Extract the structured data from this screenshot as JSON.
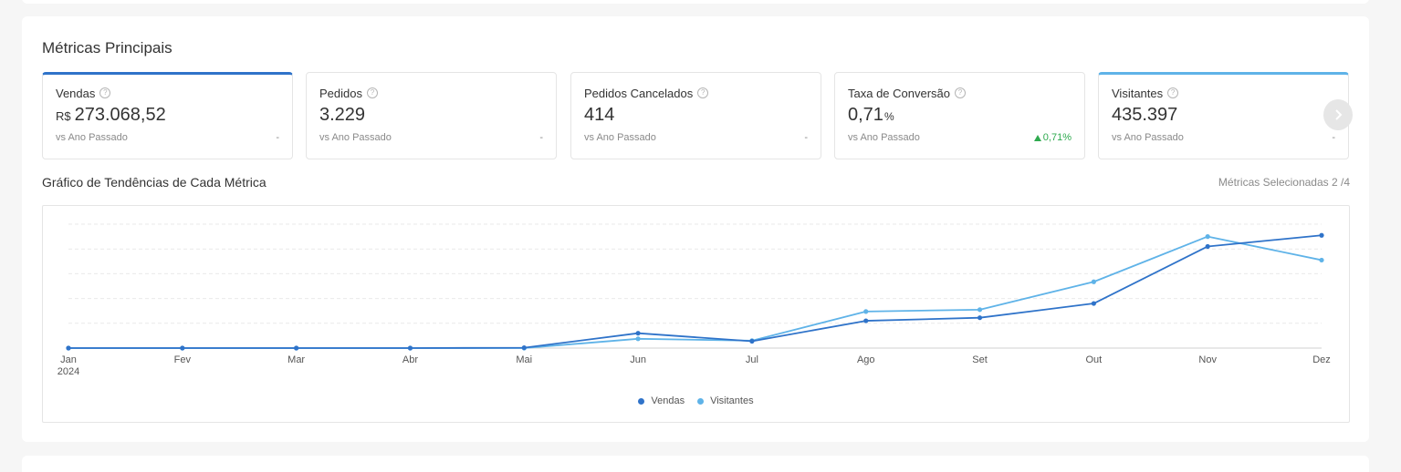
{
  "section_title": "Métricas Principais",
  "metrics": [
    {
      "name": "Vendas",
      "currency": "R$",
      "value": "273.068,52",
      "compare_label": "vs Ano Passado",
      "delta": "-"
    },
    {
      "name": "Pedidos",
      "value": "3.229",
      "compare_label": "vs Ano Passado",
      "delta": "-"
    },
    {
      "name": "Pedidos Cancelados",
      "value": "414",
      "compare_label": "vs Ano Passado",
      "delta": "-"
    },
    {
      "name": "Taxa de Conversão",
      "value": "0,71",
      "suffix": "%",
      "compare_label": "vs Ano Passado",
      "delta": "0,71%",
      "delta_direction": "up"
    },
    {
      "name": "Visitantes",
      "value": "435.397",
      "compare_label": "vs Ano Passado",
      "delta": "-"
    }
  ],
  "help_icon": "question-circle-icon",
  "next_icon": "chevron-right-icon",
  "chart_title": "Gráfico de Tendências de Cada Métrica",
  "selected_metrics_label": "Métricas Selecionadas 2 /4",
  "colors": {
    "vendas": "#2f73c9",
    "visitantes": "#5fb3e8",
    "delta_up": "#2faa4f"
  },
  "chart_data": {
    "type": "line",
    "categories": [
      "Jan",
      "Fev",
      "Mar",
      "Abr",
      "Mai",
      "Jun",
      "Jul",
      "Ago",
      "Set",
      "Out",
      "Nov",
      "Dez"
    ],
    "first_category_year": "2024",
    "series": [
      {
        "name": "Vendas",
        "values": [
          0,
          0,
          0,
          0,
          0.3,
          12,
          5.5,
          22,
          24.5,
          36,
          82,
          91
        ]
      },
      {
        "name": "Visitantes",
        "values": [
          0,
          0,
          0,
          0,
          0,
          7.5,
          6,
          29.5,
          31,
          53.5,
          90,
          71
        ]
      }
    ],
    "ylim": [
      0,
      100
    ],
    "grid": true,
    "legend": "bottom-center"
  }
}
